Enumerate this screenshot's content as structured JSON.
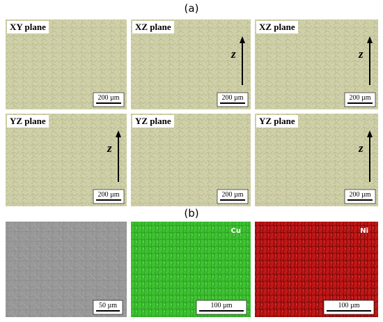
{
  "labels": {
    "a": "(a)",
    "b": "(b)"
  },
  "panels_a": [
    {
      "title": "XY plane",
      "scale": "200 µm"
    },
    {
      "title": "XZ plane",
      "axis": "z",
      "scale": "200 µm"
    },
    {
      "title": "XZ plane",
      "axis": "z",
      "scale": "200 µm"
    },
    {
      "title": "YZ plane",
      "axis": "z",
      "scale": "200 µm"
    },
    {
      "title": "YZ plane",
      "scale": "200 µm"
    },
    {
      "title": "YZ plane",
      "axis": "z",
      "scale": "200 µm"
    }
  ],
  "panels_b": [
    {
      "scale": "50 µm"
    },
    {
      "element": "Cu",
      "scale": "100 µm"
    },
    {
      "element": "Ni",
      "scale": "100 µm"
    }
  ]
}
